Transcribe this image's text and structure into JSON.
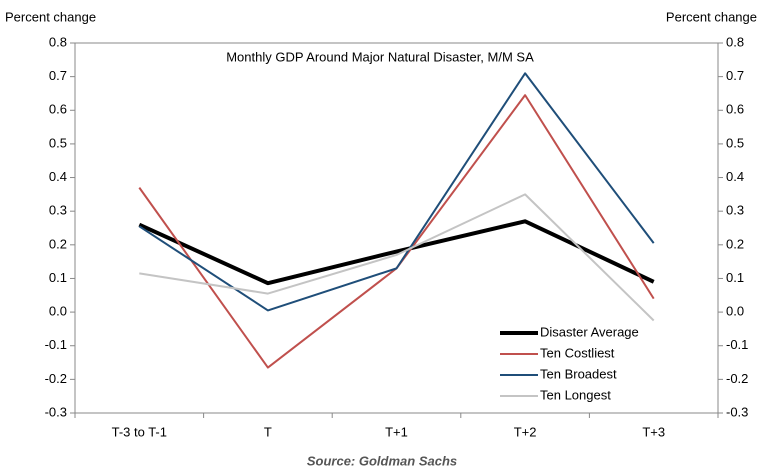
{
  "chart_data": {
    "type": "line",
    "title": "Monthly GDP Around Major Natural Disaster, M/M SA",
    "y_label": "Percent change",
    "y2_label": "Percent change",
    "source": "Source: Goldman Sachs",
    "categories": [
      "T-3 to T-1",
      "T",
      "T+1",
      "T+2",
      "T+3"
    ],
    "series": [
      {
        "name": "Disaster Average",
        "color": "#000000",
        "values": [
          0.26,
          0.086,
          0.18,
          0.27,
          0.09
        ]
      },
      {
        "name": "Ten Costliest",
        "color": "#c0504d",
        "values": [
          0.37,
          -0.165,
          0.13,
          0.645,
          0.04
        ]
      },
      {
        "name": "Ten Broadest",
        "color": "#1f4e79",
        "values": [
          0.255,
          0.005,
          0.13,
          0.71,
          0.205
        ]
      },
      {
        "name": "Ten Longest",
        "color": "#c4c4c4",
        "values": [
          0.115,
          0.055,
          0.17,
          0.35,
          -0.025
        ]
      }
    ],
    "ylim": [
      -0.3,
      0.8
    ],
    "yticks": [
      -0.3,
      -0.2,
      -0.1,
      {
        "value": 0,
        "label": "0.0"
      },
      0.1,
      0.2,
      0.3,
      0.4,
      0.5,
      0.6,
      0.7,
      0.8
    ],
    "y2lim": [
      -0.3,
      0.8
    ],
    "y2ticks": [
      -0.3,
      -0.2,
      -0.1,
      {
        "value": 0,
        "label": "0.0"
      },
      0.1,
      0.2,
      0.3,
      0.4,
      0.5,
      0.6,
      0.7,
      0.8
    ],
    "legend": "lower right",
    "grid": false
  }
}
